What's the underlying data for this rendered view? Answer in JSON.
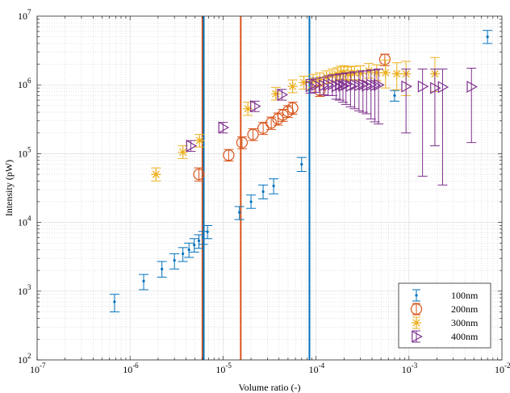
{
  "chart_data": {
    "type": "scatter",
    "title": "",
    "xlabel": "Volume ratio (-)",
    "ylabel": "Intensity (pW)",
    "xscale": "log",
    "yscale": "log",
    "xlim": [
      1e-07,
      0.01
    ],
    "ylim": [
      100,
      10000000
    ],
    "grid": true,
    "legend_position": "bottom-right",
    "x_ticks": [
      {
        "value": 1e-07,
        "base": "10",
        "exp": "-7"
      },
      {
        "value": 1e-06,
        "base": "10",
        "exp": "-6"
      },
      {
        "value": 1e-05,
        "base": "10",
        "exp": "-5"
      },
      {
        "value": 0.0001,
        "base": "10",
        "exp": "-4"
      },
      {
        "value": 0.001,
        "base": "10",
        "exp": "-3"
      },
      {
        "value": 0.01,
        "base": "10",
        "exp": "-2"
      }
    ],
    "y_ticks": [
      {
        "value": 100,
        "base": "10",
        "exp": "2"
      },
      {
        "value": 1000,
        "base": "10",
        "exp": "3"
      },
      {
        "value": 10000,
        "base": "10",
        "exp": "4"
      },
      {
        "value": 100000,
        "base": "10",
        "exp": "5"
      },
      {
        "value": 1000000,
        "base": "10",
        "exp": "6"
      },
      {
        "value": 10000000,
        "base": "10",
        "exp": "7"
      }
    ],
    "vertical_lines": [
      {
        "x": 6e-06,
        "color": "#D95319"
      },
      {
        "x": 6.2e-06,
        "color": "#0072BD"
      },
      {
        "x": 1.55e-05,
        "color": "#D95319"
      },
      {
        "x": 8.5e-05,
        "color": "#0072BD"
      }
    ],
    "series": [
      {
        "name": "100nm",
        "color": "#0072BD",
        "marker": "dot",
        "points": [
          {
            "x": 6.8e-07,
            "y": 700,
            "lo": 500,
            "hi": 900
          },
          {
            "x": 1.4e-06,
            "y": 1400,
            "lo": 1050,
            "hi": 1750
          },
          {
            "x": 2.2e-06,
            "y": 2100,
            "lo": 1600,
            "hi": 2700
          },
          {
            "x": 3e-06,
            "y": 2800,
            "lo": 2100,
            "hi": 3500
          },
          {
            "x": 3.7e-06,
            "y": 3500,
            "lo": 2700,
            "hi": 4300
          },
          {
            "x": 4.3e-06,
            "y": 4000,
            "lo": 3100,
            "hi": 5000
          },
          {
            "x": 4.9e-06,
            "y": 4700,
            "lo": 3700,
            "hi": 5800
          },
          {
            "x": 5.5e-06,
            "y": 5400,
            "lo": 4200,
            "hi": 6600
          },
          {
            "x": 6.1e-06,
            "y": 6000,
            "lo": 4800,
            "hi": 7400
          },
          {
            "x": 6.8e-06,
            "y": 7300,
            "lo": 5800,
            "hi": 9000
          },
          {
            "x": 1.5e-05,
            "y": 14000,
            "lo": 11000,
            "hi": 17000
          },
          {
            "x": 2e-05,
            "y": 20000,
            "lo": 16000,
            "hi": 25000
          },
          {
            "x": 2.7e-05,
            "y": 28000,
            "lo": 22000,
            "hi": 35000
          },
          {
            "x": 3.5e-05,
            "y": 34000,
            "lo": 26000,
            "hi": 43000
          },
          {
            "x": 7e-05,
            "y": 70000,
            "lo": 55000,
            "hi": 88000
          },
          {
            "x": 0.0007,
            "y": 700000,
            "lo": 580000,
            "hi": 830000
          },
          {
            "x": 0.007,
            "y": 5000000,
            "lo": 4000000,
            "hi": 6200000
          }
        ]
      },
      {
        "name": "200nm",
        "color": "#D95319",
        "marker": "circle",
        "points": [
          {
            "x": 5.5e-06,
            "y": 50000,
            "lo": 40000,
            "hi": 62000
          },
          {
            "x": 1.15e-05,
            "y": 95000,
            "lo": 78000,
            "hi": 115000
          },
          {
            "x": 1.6e-05,
            "y": 145000,
            "lo": 118000,
            "hi": 175000
          },
          {
            "x": 2.1e-05,
            "y": 190000,
            "lo": 155000,
            "hi": 230000
          },
          {
            "x": 2.7e-05,
            "y": 235000,
            "lo": 190000,
            "hi": 285000
          },
          {
            "x": 3.3e-05,
            "y": 280000,
            "lo": 225000,
            "hi": 340000
          },
          {
            "x": 3.9e-05,
            "y": 320000,
            "lo": 260000,
            "hi": 390000
          },
          {
            "x": 4.4e-05,
            "y": 365000,
            "lo": 295000,
            "hi": 440000
          },
          {
            "x": 5e-05,
            "y": 410000,
            "lo": 335000,
            "hi": 500000
          },
          {
            "x": 5.6e-05,
            "y": 460000,
            "lo": 375000,
            "hi": 560000
          },
          {
            "x": 0.00011,
            "y": 830000,
            "lo": 680000,
            "hi": 1000000
          },
          {
            "x": 0.00055,
            "y": 2350000,
            "lo": 1900000,
            "hi": 2800000
          }
        ]
      },
      {
        "name": "300nm",
        "color": "#EDB120",
        "marker": "star",
        "points": [
          {
            "x": 1.9e-06,
            "y": 50000,
            "lo": 40000,
            "hi": 62000
          },
          {
            "x": 3.7e-06,
            "y": 105000,
            "lo": 85000,
            "hi": 130000
          },
          {
            "x": 5.6e-06,
            "y": 155000,
            "lo": 125000,
            "hi": 190000
          },
          {
            "x": 1.85e-05,
            "y": 450000,
            "lo": 360000,
            "hi": 560000
          },
          {
            "x": 3.7e-05,
            "y": 740000,
            "lo": 600000,
            "hi": 920000
          },
          {
            "x": 5.6e-05,
            "y": 950000,
            "lo": 770000,
            "hi": 1180000
          },
          {
            "x": 7.4e-05,
            "y": 1080000,
            "lo": 870000,
            "hi": 1340000
          },
          {
            "x": 9.3e-05,
            "y": 1150000,
            "lo": 920000,
            "hi": 1420000
          },
          {
            "x": 0.00011,
            "y": 1200000,
            "lo": 960000,
            "hi": 1500000
          },
          {
            "x": 0.00013,
            "y": 1300000,
            "lo": 1050000,
            "hi": 1600000
          },
          {
            "x": 0.00015,
            "y": 1380000,
            "lo": 1100000,
            "hi": 1700000
          },
          {
            "x": 0.00017,
            "y": 1430000,
            "lo": 1150000,
            "hi": 1780000
          },
          {
            "x": 0.000185,
            "y": 1500000,
            "lo": 1200000,
            "hi": 1870000
          },
          {
            "x": 0.0002,
            "y": 1520000,
            "lo": 1210000,
            "hi": 1900000
          },
          {
            "x": 0.00022,
            "y": 1450000,
            "lo": 1150000,
            "hi": 1820000
          },
          {
            "x": 0.00024,
            "y": 1480000,
            "lo": 1180000,
            "hi": 1850000
          },
          {
            "x": 0.00026,
            "y": 1490000,
            "lo": 1190000,
            "hi": 1870000
          },
          {
            "x": 0.0003,
            "y": 1480000,
            "lo": 1150000,
            "hi": 1900000
          },
          {
            "x": 0.00037,
            "y": 1600000,
            "lo": 1250000,
            "hi": 2050000
          },
          {
            "x": 0.00045,
            "y": 1500000,
            "lo": 1150000,
            "hi": 1950000
          },
          {
            "x": 0.00056,
            "y": 1500000,
            "lo": 900000,
            "hi": 2300000
          },
          {
            "x": 0.00074,
            "y": 1450000,
            "lo": 850000,
            "hi": 2100000
          },
          {
            "x": 0.00093,
            "y": 1450000,
            "lo": 700000,
            "hi": 2200000
          },
          {
            "x": 0.0019,
            "y": 1450000,
            "lo": 800000,
            "hi": 2500000
          }
        ]
      },
      {
        "name": "400nm",
        "color": "#7E2F8E",
        "marker": "triangle-right",
        "points": [
          {
            "x": 4.5e-06,
            "y": 130000,
            "lo": 108000,
            "hi": 155000
          },
          {
            "x": 1e-05,
            "y": 240000,
            "lo": 200000,
            "hi": 285000
          },
          {
            "x": 2.2e-05,
            "y": 490000,
            "lo": 410000,
            "hi": 580000
          },
          {
            "x": 4.3e-05,
            "y": 720000,
            "lo": 600000,
            "hi": 860000
          },
          {
            "x": 8.7e-05,
            "y": 960000,
            "lo": 760000,
            "hi": 1200000
          },
          {
            "x": 0.0001,
            "y": 1000000,
            "lo": 780000,
            "hi": 1250000
          },
          {
            "x": 0.00012,
            "y": 980000,
            "lo": 720000,
            "hi": 1280000
          },
          {
            "x": 0.000135,
            "y": 1000000,
            "lo": 700000,
            "hi": 1350000
          },
          {
            "x": 0.00015,
            "y": 1020000,
            "lo": 700000,
            "hi": 1400000
          },
          {
            "x": 0.000165,
            "y": 960000,
            "lo": 620000,
            "hi": 1400000
          },
          {
            "x": 0.00018,
            "y": 1000000,
            "lo": 600000,
            "hi": 1450000
          },
          {
            "x": 0.000195,
            "y": 980000,
            "lo": 560000,
            "hi": 1450000
          },
          {
            "x": 0.00021,
            "y": 1010000,
            "lo": 520000,
            "hi": 1500000
          },
          {
            "x": 0.000235,
            "y": 970000,
            "lo": 480000,
            "hi": 1500000
          },
          {
            "x": 0.00026,
            "y": 1000000,
            "lo": 450000,
            "hi": 1550000
          },
          {
            "x": 0.00029,
            "y": 990000,
            "lo": 420000,
            "hi": 1550000
          },
          {
            "x": 0.00032,
            "y": 1010000,
            "lo": 400000,
            "hi": 1600000
          },
          {
            "x": 0.00035,
            "y": 980000,
            "lo": 380000,
            "hi": 1600000
          },
          {
            "x": 0.00039,
            "y": 1000000,
            "lo": 320000,
            "hi": 1650000
          },
          {
            "x": 0.00043,
            "y": 990000,
            "lo": 290000,
            "hi": 1650000
          },
          {
            "x": 0.00047,
            "y": 1000000,
            "lo": 270000,
            "hi": 1700000
          },
          {
            "x": 0.00093,
            "y": 950000,
            "lo": 200000,
            "hi": 1700000
          },
          {
            "x": 0.0014,
            "y": 950000,
            "lo": 47000,
            "hi": 1700000
          },
          {
            "x": 0.0019,
            "y": 900000,
            "lo": 130000,
            "hi": 1700000
          },
          {
            "x": 0.0023,
            "y": 930000,
            "lo": 35000,
            "hi": 1700000
          },
          {
            "x": 0.0047,
            "y": 940000,
            "lo": 145000,
            "hi": 1750000
          }
        ]
      }
    ]
  }
}
